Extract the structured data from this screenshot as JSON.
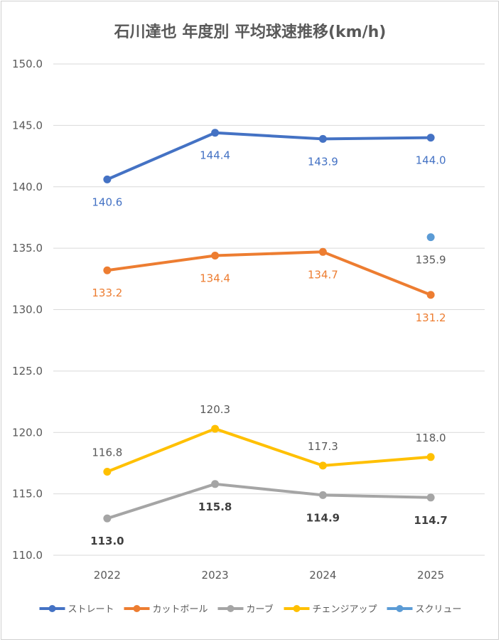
{
  "chart_data": {
    "type": "line",
    "title": "石川達也 年度別 平均球速推移(km/h)",
    "xlabel": "",
    "ylabel": "",
    "categories": [
      "2022",
      "2023",
      "2024",
      "2025"
    ],
    "ylim": [
      110,
      150
    ],
    "ytick_step": 5,
    "ytick_labels": [
      "110.0",
      "115.0",
      "120.0",
      "125.0",
      "130.0",
      "135.0",
      "140.0",
      "145.0",
      "150.0"
    ],
    "grid": true,
    "legend_position": "bottom",
    "series": [
      {
        "name": "ストレート",
        "color": "#4472C4",
        "label_color": "#4472C4",
        "label_bold": false,
        "label_pos": "below",
        "values": [
          140.6,
          144.4,
          143.9,
          144.0
        ],
        "labels": [
          "140.6",
          "144.4",
          "143.9",
          "144.0"
        ]
      },
      {
        "name": "カットボール",
        "color": "#ED7D31",
        "label_color": "#ED7D31",
        "label_bold": false,
        "label_pos": "below",
        "values": [
          133.2,
          134.4,
          134.7,
          131.2
        ],
        "labels": [
          "133.2",
          "134.4",
          "134.7",
          "131.2"
        ]
      },
      {
        "name": "カーブ",
        "color": "#A5A5A5",
        "label_color": "#404040",
        "label_bold": true,
        "label_pos": "below",
        "values": [
          113.0,
          115.8,
          114.9,
          114.7
        ],
        "labels": [
          "113.0",
          "115.8",
          "114.9",
          "114.7"
        ]
      },
      {
        "name": "チェンジアップ",
        "color": "#FFC000",
        "label_color": "#595959",
        "label_bold": false,
        "label_pos": "above",
        "values": [
          116.8,
          120.3,
          117.3,
          118.0
        ],
        "labels": [
          "116.8",
          "120.3",
          "117.3",
          "118.0"
        ]
      },
      {
        "name": "スクリュー",
        "color": "#5B9BD5",
        "label_color": "#595959",
        "label_bold": false,
        "label_pos": "below",
        "values": [
          null,
          null,
          null,
          135.9
        ],
        "labels": [
          null,
          null,
          null,
          "135.9"
        ]
      }
    ]
  }
}
